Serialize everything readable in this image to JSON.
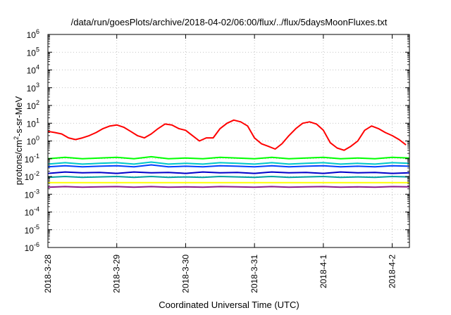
{
  "chart_data": {
    "type": "line",
    "title": "/data/run/goesPlots/archive/2018-04-02/06:00/flux/../flux/5daysMoonFluxes.txt",
    "xlabel": "Coordinated Universal Time (UTC)",
    "ylabel_parts": {
      "base": "protons/cm",
      "sup": "2",
      "rest": "-s-sr-MeV"
    },
    "x_unit": "days since 2018-03-28 00:00 UTC",
    "xlim": [
      0,
      5.25
    ],
    "x_ticks": [
      {
        "x": 0,
        "label": "2018-3-28"
      },
      {
        "x": 1,
        "label": "2018-3-29"
      },
      {
        "x": 2,
        "label": "2018-3-30"
      },
      {
        "x": 3,
        "label": "2018-3-31"
      },
      {
        "x": 4,
        "label": "2018-4-1"
      },
      {
        "x": 5,
        "label": "2018-4-2"
      }
    ],
    "y_scale": "log",
    "ylim": [
      1e-06,
      1000000.0
    ],
    "y_ticks": [
      {
        "exp": -6,
        "label": "10",
        "sup": "-6"
      },
      {
        "exp": -5,
        "label": "10",
        "sup": "-5"
      },
      {
        "exp": -4,
        "label": "10",
        "sup": "-4"
      },
      {
        "exp": -3,
        "label": "10",
        "sup": "-3"
      },
      {
        "exp": -2,
        "label": "10",
        "sup": "-2"
      },
      {
        "exp": -1,
        "label": "10",
        "sup": "-1"
      },
      {
        "exp": 0,
        "label": "10",
        "sup": "0"
      },
      {
        "exp": 1,
        "label": "10",
        "sup": "1"
      },
      {
        "exp": 2,
        "label": "10",
        "sup": "2"
      },
      {
        "exp": 3,
        "label": "10",
        "sup": "3"
      },
      {
        "exp": 4,
        "label": "10",
        "sup": "4"
      },
      {
        "exp": 5,
        "label": "10",
        "sup": "5"
      },
      {
        "exp": 6,
        "label": "10",
        "sup": "6"
      }
    ],
    "grid": true,
    "series": [
      {
        "color": "#ff0000",
        "x": [
          0,
          0.1,
          0.2,
          0.3,
          0.4,
          0.5,
          0.6,
          0.7,
          0.8,
          0.9,
          1.0,
          1.1,
          1.2,
          1.3,
          1.4,
          1.5,
          1.6,
          1.7,
          1.8,
          1.9,
          2.0,
          2.1,
          2.2,
          2.3,
          2.4,
          2.5,
          2.6,
          2.7,
          2.8,
          2.9,
          3.0,
          3.1,
          3.2,
          3.3,
          3.4,
          3.5,
          3.6,
          3.7,
          3.8,
          3.9,
          4.0,
          4.1,
          4.2,
          4.3,
          4.4,
          4.5,
          4.6,
          4.7,
          4.8,
          4.9,
          5.0,
          5.1,
          5.2
        ],
        "y": [
          3.5,
          3,
          2.5,
          1.5,
          1.2,
          1.5,
          2,
          3,
          5,
          7,
          8,
          6,
          3.5,
          2,
          1.5,
          2.5,
          5,
          9,
          8,
          5,
          4,
          2,
          1,
          1.5,
          1.5,
          5,
          10,
          15,
          12,
          7,
          1.5,
          0.7,
          0.5,
          0.35,
          0.7,
          2,
          5,
          10,
          12,
          9,
          4,
          0.8,
          0.4,
          0.3,
          0.5,
          1,
          4,
          7,
          5,
          3,
          2,
          1.2,
          0.6
        ]
      },
      {
        "color": "#00ff00",
        "x": [
          0,
          0.25,
          0.5,
          0.75,
          1,
          1.25,
          1.5,
          1.75,
          2,
          2.25,
          2.5,
          2.75,
          3,
          3.25,
          3.5,
          3.75,
          4,
          4.25,
          4.5,
          4.75,
          5,
          5.25
        ],
        "y": [
          0.1,
          0.12,
          0.1,
          0.11,
          0.12,
          0.1,
          0.13,
          0.1,
          0.11,
          0.1,
          0.12,
          0.11,
          0.1,
          0.12,
          0.1,
          0.11,
          0.12,
          0.1,
          0.11,
          0.1,
          0.12,
          0.11
        ]
      },
      {
        "color": "#00c8c8",
        "x": [
          0,
          0.25,
          0.5,
          0.75,
          1,
          1.25,
          1.5,
          1.75,
          2,
          2.25,
          2.5,
          2.75,
          3,
          3.25,
          3.5,
          3.75,
          4,
          4.25,
          4.5,
          4.75,
          5,
          5.25
        ],
        "y": [
          0.05,
          0.06,
          0.05,
          0.055,
          0.06,
          0.05,
          0.065,
          0.05,
          0.055,
          0.05,
          0.06,
          0.055,
          0.05,
          0.06,
          0.05,
          0.055,
          0.06,
          0.05,
          0.055,
          0.05,
          0.06,
          0.055
        ]
      },
      {
        "color": "#0040ff",
        "x": [
          0,
          0.25,
          0.5,
          0.75,
          1,
          1.25,
          1.5,
          1.75,
          2,
          2.25,
          2.5,
          2.75,
          3,
          3.25,
          3.5,
          3.75,
          4,
          4.25,
          4.5,
          4.75,
          5,
          5.25
        ],
        "y": [
          0.035,
          0.04,
          0.035,
          0.038,
          0.04,
          0.035,
          0.045,
          0.035,
          0.038,
          0.035,
          0.04,
          0.038,
          0.035,
          0.04,
          0.035,
          0.038,
          0.04,
          0.035,
          0.038,
          0.035,
          0.04,
          0.038
        ]
      },
      {
        "color": "#0000c8",
        "x": [
          0,
          0.25,
          0.5,
          0.75,
          1,
          1.25,
          1.5,
          1.75,
          2,
          2.25,
          2.5,
          2.75,
          3,
          3.25,
          3.5,
          3.75,
          4,
          4.25,
          4.5,
          4.75,
          5,
          5.25
        ],
        "y": [
          0.015,
          0.018,
          0.016,
          0.017,
          0.015,
          0.018,
          0.016,
          0.017,
          0.015,
          0.018,
          0.016,
          0.017,
          0.015,
          0.018,
          0.016,
          0.017,
          0.015,
          0.018,
          0.016,
          0.017,
          0.015,
          0.016
        ]
      },
      {
        "color": "#00a0a0",
        "x": [
          0,
          0.25,
          0.5,
          0.75,
          1,
          1.25,
          1.5,
          1.75,
          2,
          2.25,
          2.5,
          2.75,
          3,
          3.25,
          3.5,
          3.75,
          4,
          4.25,
          4.5,
          4.75,
          5,
          5.25
        ],
        "y": [
          0.009,
          0.01,
          0.009,
          0.0095,
          0.01,
          0.009,
          0.01,
          0.009,
          0.0095,
          0.009,
          0.01,
          0.0095,
          0.009,
          0.01,
          0.009,
          0.0095,
          0.01,
          0.009,
          0.0095,
          0.009,
          0.01,
          0.0095
        ]
      },
      {
        "color": "#ffff00",
        "x": [
          0,
          0.25,
          0.5,
          0.75,
          1,
          1.25,
          1.5,
          1.75,
          2,
          2.25,
          2.5,
          2.75,
          3,
          3.25,
          3.5,
          3.75,
          4,
          4.25,
          4.5,
          4.75,
          5,
          5.25
        ],
        "y": [
          0.0045,
          0.0045,
          0.0045,
          0.0045,
          0.0045,
          0.0045,
          0.0045,
          0.0045,
          0.0045,
          0.0045,
          0.0045,
          0.0045,
          0.0045,
          0.0045,
          0.0045,
          0.0045,
          0.0045,
          0.0045,
          0.0045,
          0.0045,
          0.0045,
          0.0045
        ]
      },
      {
        "color": "#8b1a8b",
        "x": [
          0,
          0.25,
          0.5,
          0.75,
          1,
          1.25,
          1.5,
          1.75,
          2,
          2.25,
          2.5,
          2.75,
          3,
          3.25,
          3.5,
          3.75,
          4,
          4.25,
          4.5,
          4.75,
          5,
          5.25
        ],
        "y": [
          0.0025,
          0.0027,
          0.0025,
          0.0026,
          0.0027,
          0.0025,
          0.0027,
          0.0025,
          0.0026,
          0.0025,
          0.0027,
          0.0026,
          0.0025,
          0.0027,
          0.0025,
          0.0026,
          0.0027,
          0.0025,
          0.0026,
          0.0025,
          0.0027,
          0.0026
        ]
      }
    ]
  }
}
